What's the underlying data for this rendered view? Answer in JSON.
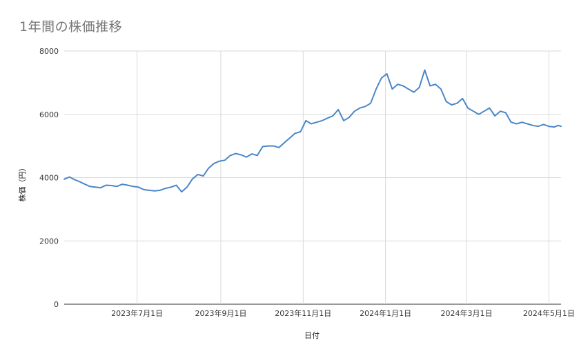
{
  "chart_data": {
    "type": "line",
    "title": "1年間の株価推移",
    "xlabel": "日付",
    "ylabel": "株価（円）",
    "ylim": [
      0,
      8000
    ],
    "xlim": [
      "2023-05-08",
      "2024-05-10"
    ],
    "y_ticks": [
      0,
      2000,
      4000,
      6000,
      8000
    ],
    "x_ticks": [
      {
        "date": "2023-07-01",
        "label": "2023年7月1日"
      },
      {
        "date": "2023-09-01",
        "label": "2023年9月1日"
      },
      {
        "date": "2023-11-01",
        "label": "2023年11月1日"
      },
      {
        "date": "2024-01-01",
        "label": "2024年1月1日"
      },
      {
        "date": "2024-03-01",
        "label": "2024年3月1日"
      },
      {
        "date": "2024-05-01",
        "label": "2024年5月1日"
      }
    ],
    "grid": true,
    "line_color": "#4a86c8",
    "series": [
      {
        "x": [
          "2023-05-08",
          "2023-05-12",
          "2023-05-15",
          "2023-05-19",
          "2023-05-23",
          "2023-05-27",
          "2023-05-31",
          "2023-06-04",
          "2023-06-08",
          "2023-06-12",
          "2023-06-16",
          "2023-06-20",
          "2023-06-24",
          "2023-06-28",
          "2023-07-02",
          "2023-07-06",
          "2023-07-10",
          "2023-07-14",
          "2023-07-18",
          "2023-07-22",
          "2023-07-26",
          "2023-07-30",
          "2023-08-03",
          "2023-08-07",
          "2023-08-11",
          "2023-08-15",
          "2023-08-19",
          "2023-08-23",
          "2023-08-27",
          "2023-08-31",
          "2023-09-04",
          "2023-09-08",
          "2023-09-12",
          "2023-09-16",
          "2023-09-20",
          "2023-09-24",
          "2023-09-28",
          "2023-10-02",
          "2023-10-06",
          "2023-10-10",
          "2023-10-14",
          "2023-10-18",
          "2023-10-22",
          "2023-10-26",
          "2023-10-30",
          "2023-11-03",
          "2023-11-07",
          "2023-11-11",
          "2023-11-15",
          "2023-11-19",
          "2023-11-23",
          "2023-11-27",
          "2023-12-01",
          "2023-12-05",
          "2023-12-09",
          "2023-12-13",
          "2023-12-17",
          "2023-12-21",
          "2023-12-25",
          "2023-12-29",
          "2024-01-02",
          "2024-01-06",
          "2024-01-10",
          "2024-01-14",
          "2024-01-18",
          "2024-01-22",
          "2024-01-26",
          "2024-01-30",
          "2024-02-03",
          "2024-02-07",
          "2024-02-11",
          "2024-02-15",
          "2024-02-19",
          "2024-02-23",
          "2024-02-27",
          "2024-03-02",
          "2024-03-06",
          "2024-03-10",
          "2024-03-14",
          "2024-03-18",
          "2024-03-22",
          "2024-03-26",
          "2024-03-30",
          "2024-04-03",
          "2024-04-07",
          "2024-04-11",
          "2024-04-15",
          "2024-04-19",
          "2024-04-23",
          "2024-04-27",
          "2024-05-01",
          "2024-05-05",
          "2024-05-08",
          "2024-05-10"
        ],
        "y": [
          3950,
          4020,
          3950,
          3880,
          3800,
          3720,
          3700,
          3680,
          3760,
          3750,
          3720,
          3790,
          3760,
          3720,
          3700,
          3620,
          3600,
          3580,
          3600,
          3660,
          3700,
          3760,
          3550,
          3700,
          3960,
          4100,
          4050,
          4300,
          4450,
          4520,
          4550,
          4700,
          4760,
          4720,
          4650,
          4750,
          4700,
          4980,
          5000,
          5000,
          4950,
          5100,
          5250,
          5400,
          5450,
          5800,
          5700,
          5750,
          5800,
          5880,
          5950,
          6150,
          5800,
          5900,
          6100,
          6200,
          6250,
          6350,
          6800,
          7150,
          7280,
          6800,
          6950,
          6900,
          6800,
          6700,
          6850,
          7400,
          6900,
          6950,
          6800,
          6400,
          6300,
          6350,
          6500,
          6200,
          6100,
          6000,
          6100,
          6200,
          5950,
          6100,
          6050,
          5750,
          5700,
          5750,
          5700,
          5650,
          5620,
          5680,
          5620,
          5600,
          5650,
          5620
        ]
      }
    ]
  }
}
